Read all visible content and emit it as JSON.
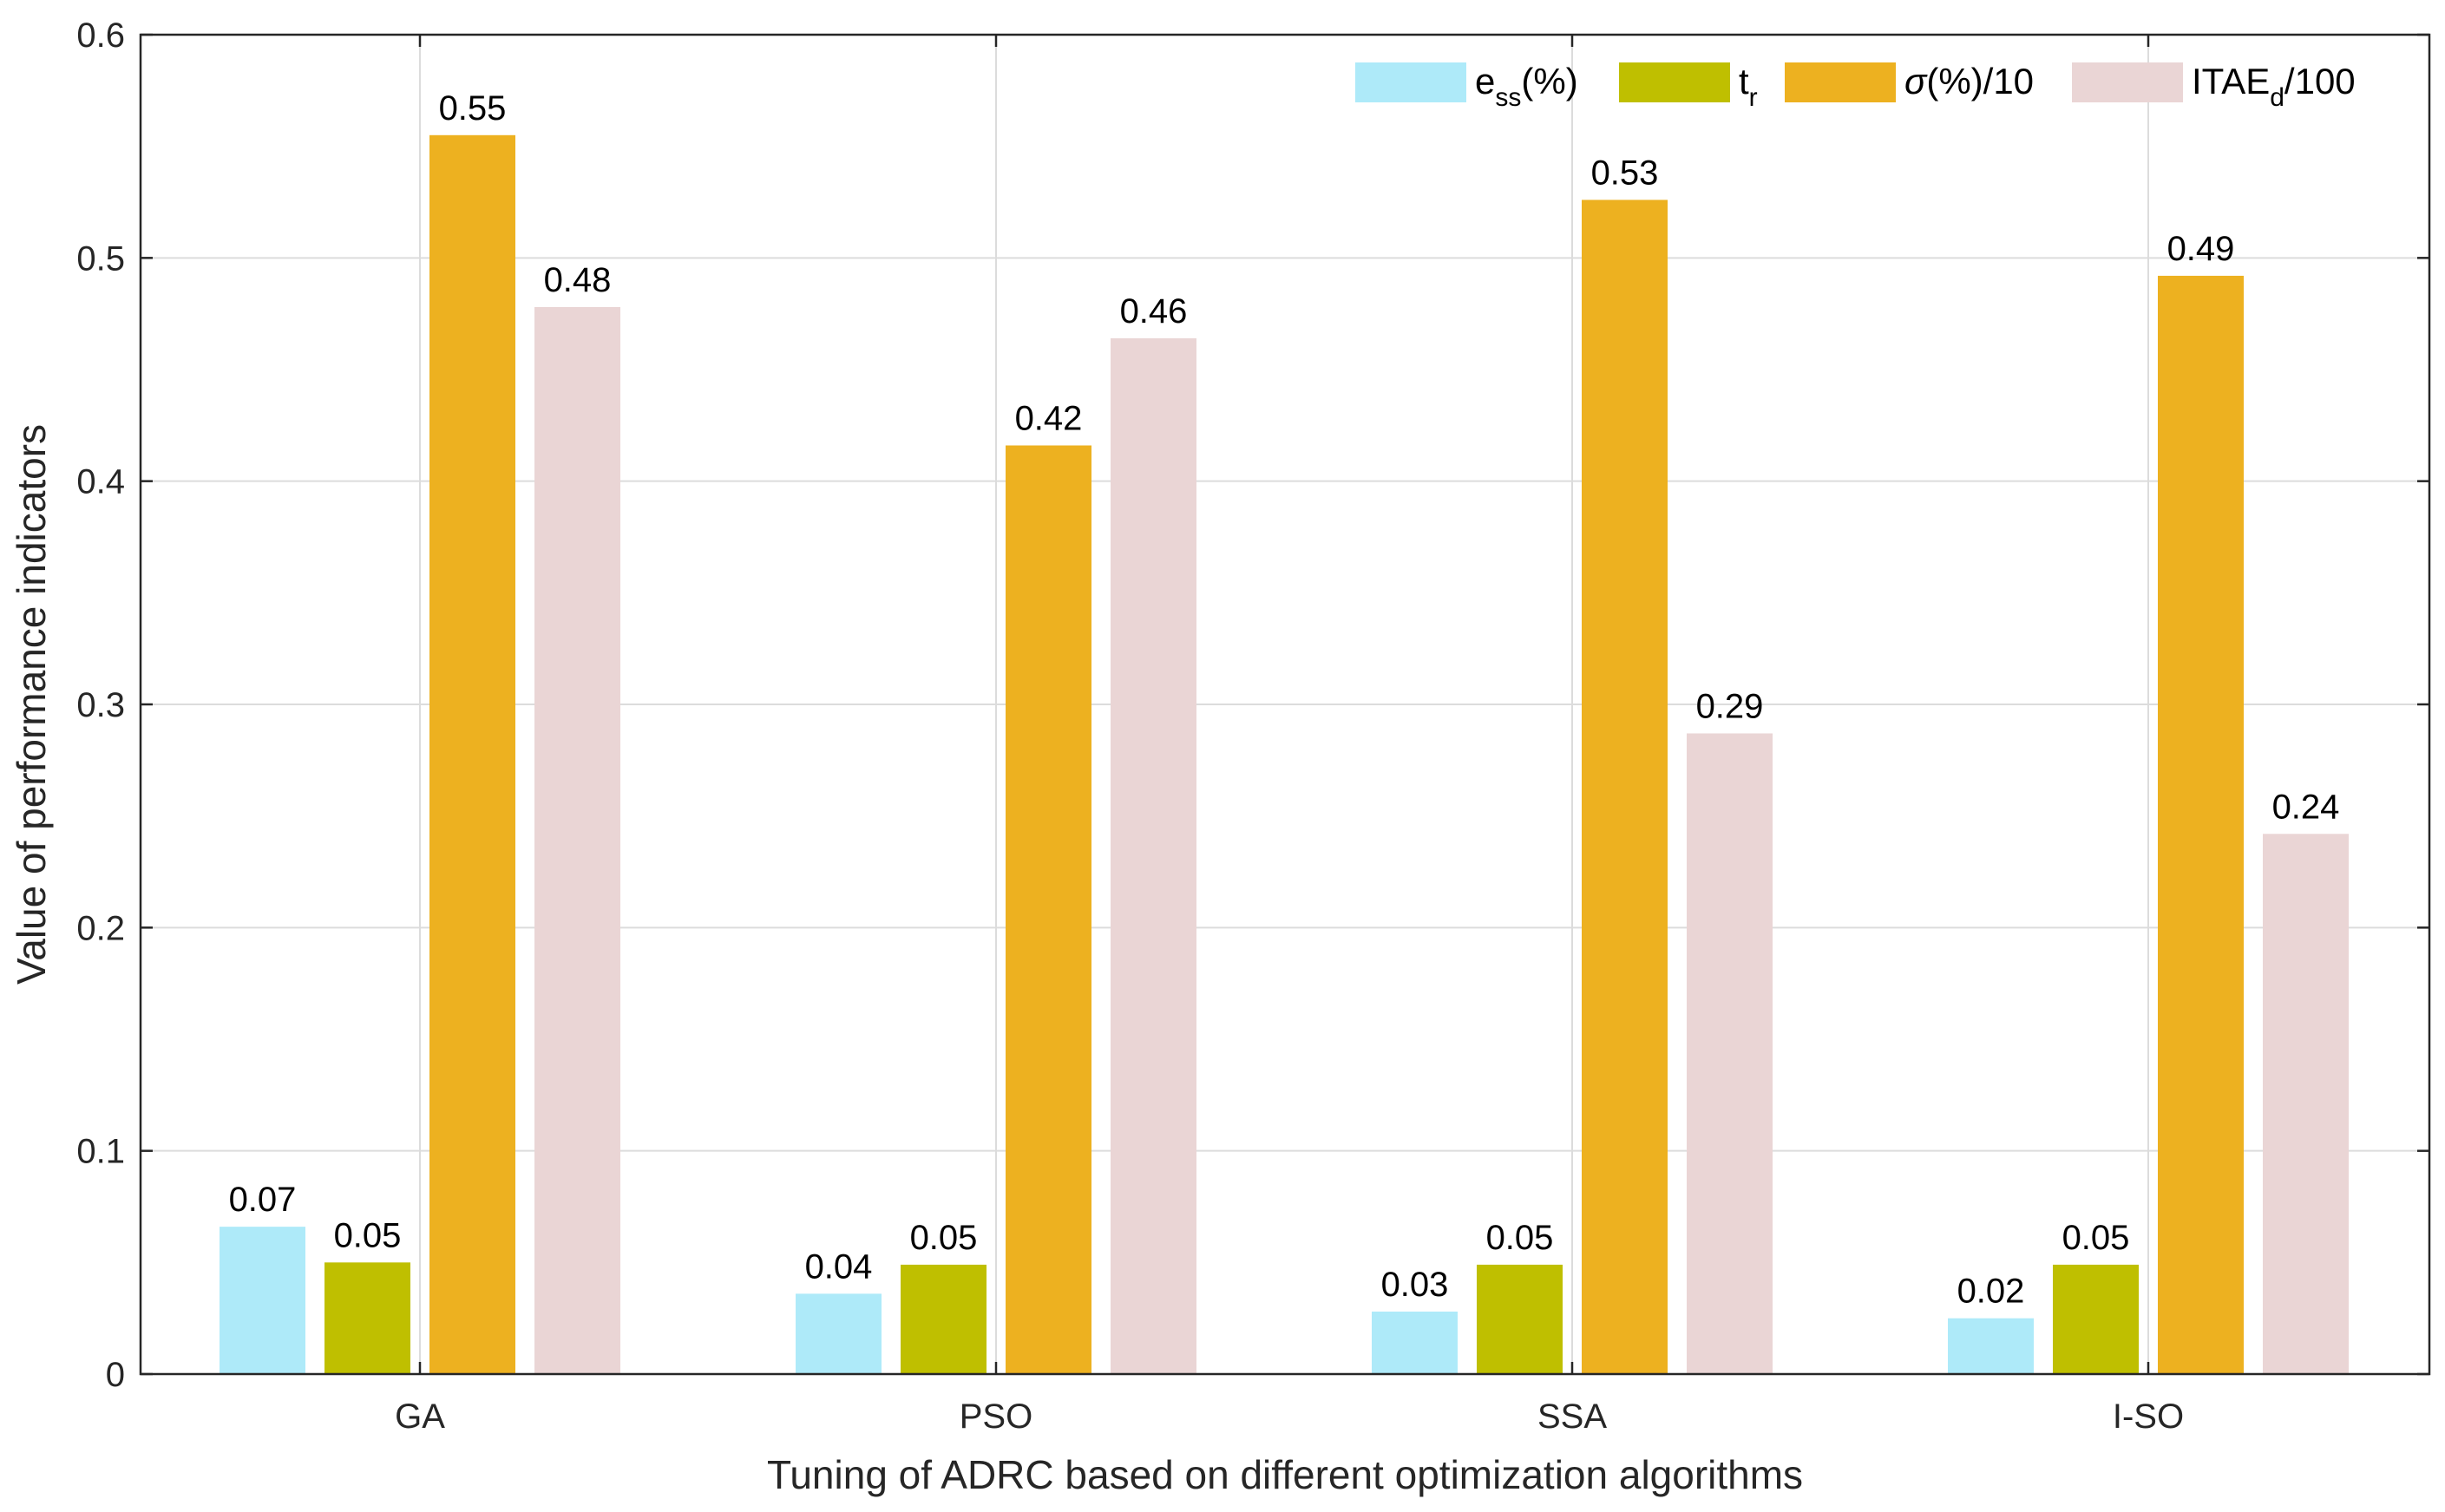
{
  "chart_data": {
    "type": "bar",
    "categories": [
      "GA",
      "PSO",
      "SSA",
      "I-SO"
    ],
    "series": [
      {
        "name": "e_ss(%)",
        "legend": {
          "main": "e",
          "sub": "ss",
          "rest": "(%)"
        },
        "color": "#aeeaf9",
        "values": [
          0.066,
          0.036,
          0.028,
          0.025
        ],
        "labels": [
          "0.07",
          "0.04",
          "0.03",
          "0.02"
        ]
      },
      {
        "name": "t_r",
        "legend": {
          "main": "t",
          "sub": "r",
          "rest": ""
        },
        "color": "#bfbf00",
        "values": [
          0.05,
          0.049,
          0.049,
          0.049
        ],
        "labels": [
          "0.05",
          "0.05",
          "0.05",
          "0.05"
        ]
      },
      {
        "name": "σ(%)/10",
        "legend": {
          "main": "σ",
          "sub": "",
          "rest": "(%)/10"
        },
        "color": "#edb120",
        "values": [
          0.555,
          0.416,
          0.526,
          0.492
        ],
        "labels": [
          "0.55",
          "0.42",
          "0.53",
          "0.49"
        ]
      },
      {
        "name": "ITAE_d/100",
        "legend": {
          "main": "ITAE",
          "sub": "d",
          "rest": "/100"
        },
        "color": "#ead5d5",
        "values": [
          0.478,
          0.464,
          0.287,
          0.242
        ],
        "labels": [
          "0.48",
          "0.46",
          "0.29",
          "0.24"
        ]
      }
    ],
    "xlabel": "Tuning of ADRC based on different optimization algorithms",
    "ylabel": "Value of performance indicators",
    "ylim": [
      0,
      0.6
    ],
    "yticks": [
      "0",
      "0.1",
      "0.2",
      "0.3",
      "0.4",
      "0.5",
      "0.6"
    ],
    "grid": true,
    "legend_position": "top-right"
  }
}
